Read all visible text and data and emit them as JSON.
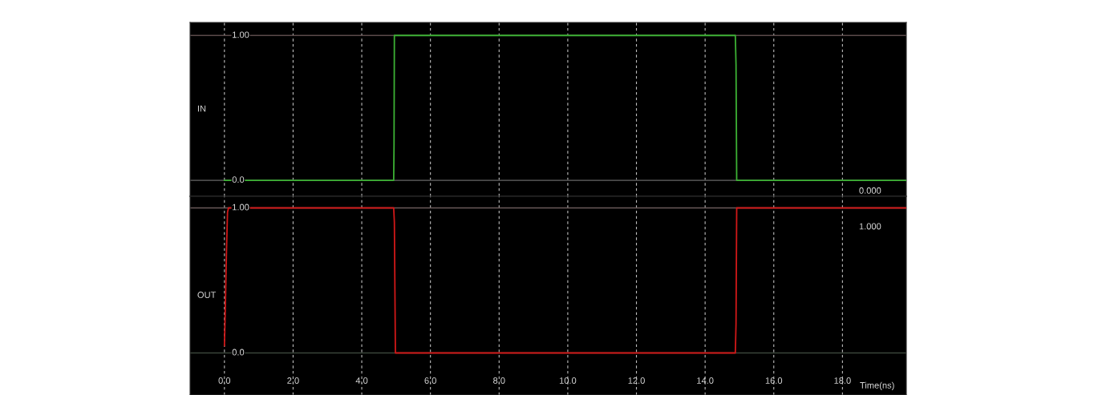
{
  "chart_data": [
    {
      "type": "line",
      "ylabel": "IN",
      "xlim": [
        -1.0,
        19.86
      ],
      "ylim": [
        -0.11,
        1.09
      ],
      "grid": "x",
      "tick_labels": false,
      "xticks": [
        {
          "value": 0,
          "label": null
        },
        {
          "value": 2,
          "label": null
        },
        {
          "value": 4,
          "label": null
        },
        {
          "value": 6,
          "label": null
        },
        {
          "value": 8,
          "label": null
        },
        {
          "value": 10,
          "label": null
        },
        {
          "value": 12,
          "label": null
        },
        {
          "value": 14,
          "label": null
        },
        {
          "value": 16,
          "label": null
        },
        {
          "value": 18,
          "label": null
        }
      ],
      "ref_lines": [
        {
          "axis": "y",
          "value": 0,
          "label": "0.0",
          "color": "#4a4a4a"
        },
        {
          "axis": "y",
          "value": 1,
          "label": "1.00",
          "color": "#5a4a4a"
        }
      ],
      "series": [
        {
          "color": "#3cb034",
          "x": [
            0,
            4.93,
            4.94,
            4.95,
            14.88,
            14.9,
            14.92,
            19.86
          ],
          "values": [
            0,
            0,
            0.25,
            1,
            1,
            0.8,
            0,
            0
          ]
        }
      ],
      "annotations": [
        "0.000"
      ]
    },
    {
      "type": "line",
      "ylabel": "OUT",
      "xlabel": "Time(ns)",
      "xlim": [
        -1.0,
        19.86
      ],
      "ylim": [
        -0.29,
        1.08
      ],
      "grid": "x",
      "tick_labels": "x",
      "xticks": [
        {
          "value": 0,
          "label": "0.0"
        },
        {
          "value": 2,
          "label": "2.0"
        },
        {
          "value": 4,
          "label": "4.0"
        },
        {
          "value": 6,
          "label": "6.0"
        },
        {
          "value": 8,
          "label": "8.0"
        },
        {
          "value": 10,
          "label": "10.0"
        },
        {
          "value": 12,
          "label": "12.0"
        },
        {
          "value": 14,
          "label": "14.0"
        },
        {
          "value": 16,
          "label": "16.0"
        },
        {
          "value": 18,
          "label": "18.0"
        }
      ],
      "ref_lines": [
        {
          "axis": "y",
          "value": 0,
          "label": "0.0",
          "color": "#3a443a"
        },
        {
          "axis": "y",
          "value": 1,
          "label": "1.00",
          "color": "#6a5a5a"
        }
      ],
      "series": [
        {
          "color": "#d01818",
          "x": [
            0,
            0.03,
            0.06,
            0.09,
            0.12,
            4.93,
            4.95,
            4.98,
            14.88,
            14.9,
            14.92,
            19.86
          ],
          "values": [
            0.05,
            0.35,
            0.7,
            0.97,
            1,
            1,
            0.9,
            0,
            0,
            0.2,
            1,
            1
          ]
        }
      ],
      "annotations": [
        "1.000"
      ]
    }
  ]
}
